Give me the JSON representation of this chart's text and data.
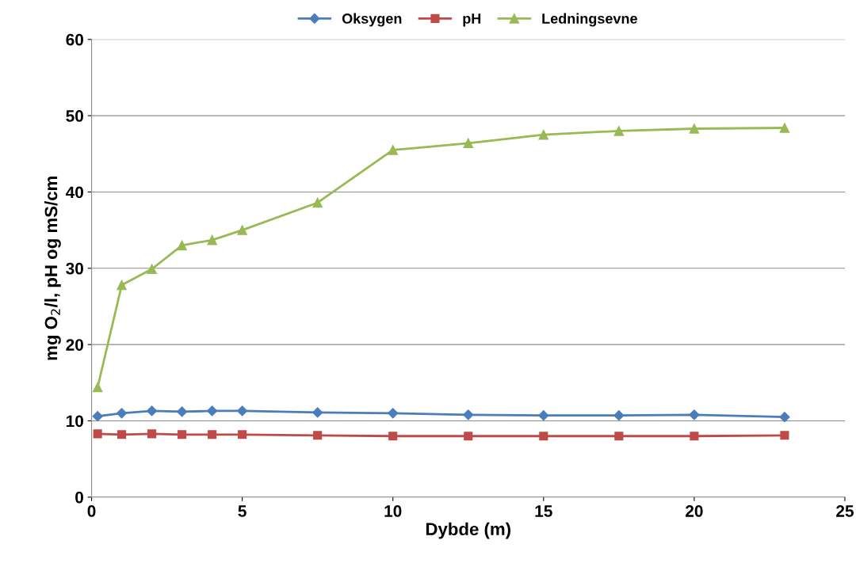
{
  "chart_data": {
    "type": "line",
    "xlabel": "Dybde (m)",
    "ylabel": "mg O$_{2}$/l, pH og mS/cm",
    "x": [
      0.2,
      1,
      2,
      3,
      4,
      5,
      7.5,
      10,
      12.5,
      15,
      17.5,
      20,
      23
    ],
    "series": [
      {
        "name": "Oksygen",
        "color": "#4a7ebb",
        "marker": "diamond",
        "values": [
          10.6,
          11.0,
          11.3,
          11.2,
          11.3,
          11.3,
          11.1,
          11.0,
          10.8,
          10.7,
          10.7,
          10.8,
          10.5
        ]
      },
      {
        "name": "pH",
        "color": "#be4b48",
        "marker": "square",
        "values": [
          8.3,
          8.2,
          8.3,
          8.2,
          8.2,
          8.2,
          8.1,
          8.0,
          8.0,
          8.0,
          8.0,
          8.0,
          8.1
        ]
      },
      {
        "name": "Ledningsevne",
        "color": "#98b954",
        "marker": "triangle",
        "values": [
          14.4,
          27.8,
          29.9,
          33.0,
          33.7,
          35.0,
          38.6,
          45.5,
          46.4,
          47.5,
          48.0,
          48.3,
          48.4
        ]
      }
    ],
    "xlim": [
      0,
      25
    ],
    "xticks": [
      0,
      5,
      10,
      15,
      20,
      25
    ],
    "ylim": [
      0,
      60
    ],
    "yticks": [
      0,
      10,
      20,
      30,
      40,
      50,
      60
    ],
    "grid": "y",
    "legend": "top",
    "line_style": "solid"
  }
}
